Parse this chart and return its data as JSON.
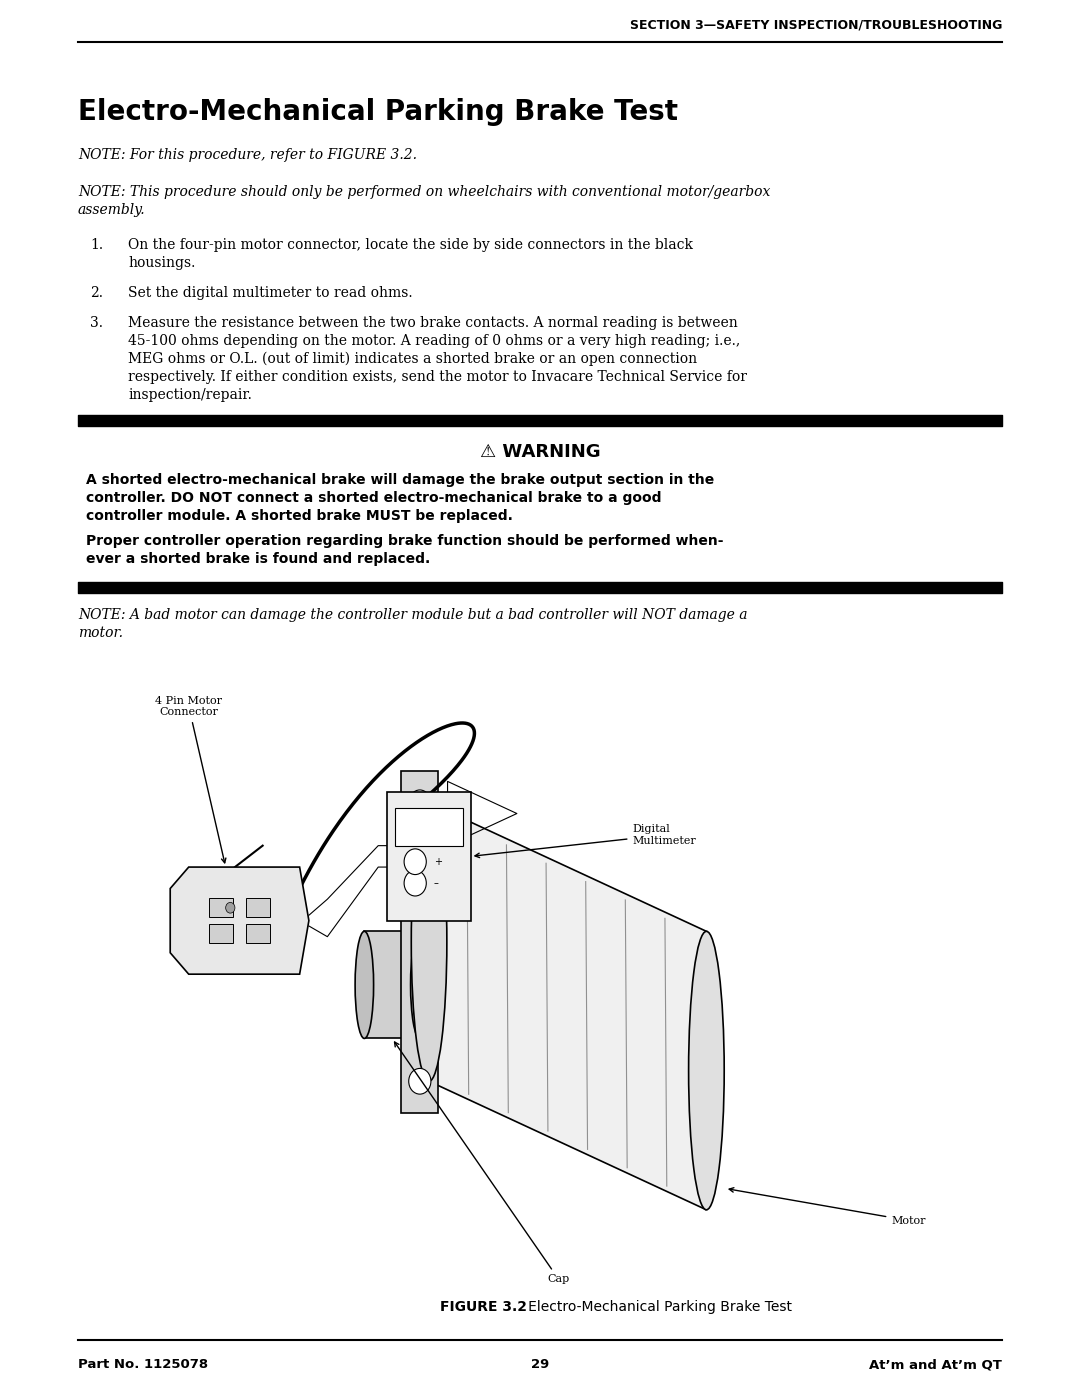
{
  "page_width": 10.8,
  "page_height": 13.97,
  "bg_color": "#ffffff",
  "header_text": "SECTION 3—SAFETY INSPECTION/TROUBLESHOOTING",
  "title": "Electro-Mechanical Parking Brake Test",
  "note1": "NOTE: For this procedure, refer to FIGURE 3.2.",
  "note2_line1": "NOTE: This procedure should only be performed on wheelchairs with conventional motor/gearbox",
  "note2_line2": "assembly.",
  "step1_num": "1.",
  "step1": "On the four-pin motor connector, locate the side by side connectors in the black",
  "step1b": "housings.",
  "step2_num": "2.",
  "step2": "Set the digital multimeter to read ohms.",
  "step3_num": "3.",
  "step3_line1": "Measure the resistance between the two brake contacts. A normal reading is between",
  "step3_line2": "45-100 ohms depending on the motor. A reading of 0 ohms or a very high reading; i.e.,",
  "step3_line3": "MEG ohms or O.L. (out of limit) indicates a shorted brake or an open connection",
  "step3_line4": "respectively. If either condition exists, send the motor to Invacare Technical Service for",
  "step3_line5": "inspection/repair.",
  "warning_title": "⚠ WARNING",
  "warning_text1_line1": "A shorted electro-mechanical brake will damage the brake output section in the",
  "warning_text1_line2": "controller. DO NOT connect a shorted electro-mechanical brake to a good",
  "warning_text1_line3": "controller module. A shorted brake MUST be replaced.",
  "warning_text2_line1": "Proper controller operation regarding brake function should be performed when-",
  "warning_text2_line2": "ever a shorted brake is found and replaced.",
  "note3_line1": "NOTE: A bad motor can damage the controller module but a bad controller will NOT damage a",
  "note3_line2": "motor.",
  "figure_caption_bold": "FIGURE 3.2",
  "figure_caption_normal": "   Electro-Mechanical Parking Brake Test",
  "footer_left": "Part No. 1125078",
  "footer_center": "29",
  "footer_right": "At’m and At’m QT",
  "label_connector": "4 Pin Motor\nConnector",
  "label_multimeter": "Digital\nMultimeter",
  "label_motor": "Motor",
  "label_cap": "Cap",
  "line_color": "#000000",
  "text_color": "#000000",
  "serif_font": "DejaVu Serif",
  "sans_font": "DejaVu Sans"
}
